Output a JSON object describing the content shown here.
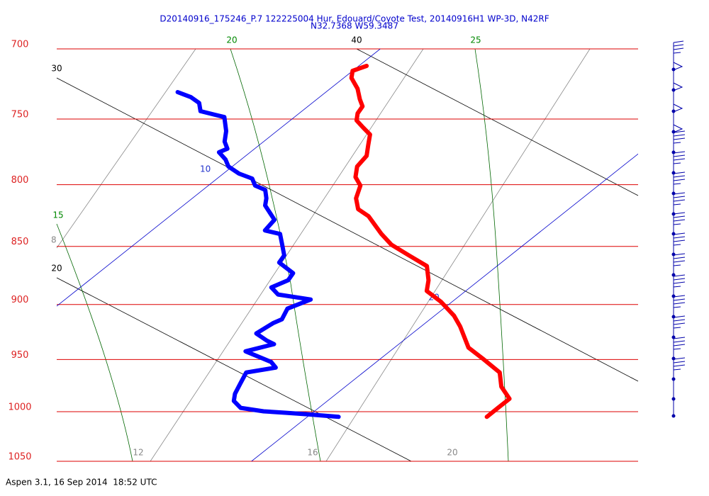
{
  "chart_data": {
    "type": "skewt",
    "title": "D20140916_175246_P.7 122225004 Hur. Edouard/Coyote Test, 20140916H1 WP-3D, N42RF",
    "subtitle": "N32.7368 W59.3487",
    "footer": "Aspen 3.1, 16 Sep 2014  18:52 UTC",
    "log_y": true,
    "ylim": [
      700,
      1050
    ],
    "yticks": [
      700,
      750,
      800,
      850,
      900,
      950,
      1000,
      1050
    ],
    "isotherms": [
      10,
      20
    ],
    "dry_adiabats": [
      30,
      20,
      40
    ],
    "moist_adiabats": [
      20,
      15,
      25
    ],
    "mixing_ratios": [
      8,
      12,
      16,
      20
    ],
    "series": [
      {
        "color": "#ff0000",
        "x": [
          10.2,
          10.0,
          10.2,
          10.7,
          11.1,
          11.4,
          11.5,
          11.7,
          12.1,
          12.5,
          12.8,
          13.1,
          13.2,
          13.5,
          13.9,
          14.2,
          14.6,
          15.1,
          16.0,
          16.6,
          17.4,
          18.2,
          18.7,
          19.0,
          19.7,
          20.5,
          21.0,
          21.9,
          22.6,
          23.5,
          24.0,
          24.6,
          24.6,
          24.6
        ],
        "values": [
          711.8,
          715.3,
          720.3,
          727.9,
          735.5,
          740.7,
          745.8,
          751.0,
          756.3,
          761.5,
          769.6,
          777.6,
          785.8,
          794.0,
          800.7,
          810.8,
          819.4,
          825.2,
          839.7,
          848.6,
          857.6,
          866.6,
          878.8,
          888.1,
          897.4,
          910.0,
          919.6,
          939.0,
          948.9,
          962.2,
          975.7,
          987.4,
          996.3,
          1005.1
        ]
      },
      {
        "color": "#0000ff",
        "x": [
          6.2,
          6.7,
          7.1,
          7.4,
          7.9,
          8.2,
          8.7,
          9.0,
          9.3,
          9.2,
          9.6,
          9.9,
          10.4,
          10.9,
          11.2,
          11.6,
          11.9,
          12.1,
          12.8,
          12.9,
          13.4,
          13.8,
          14.2,
          14.3,
          15.0,
          15.1,
          14.9,
          15.3,
          16.3,
          16.0,
          16.2,
          16.1,
          16.0,
          16.5,
          16.8,
          16.3,
          17.3,
          17.6,
          17.0,
          17.2,
          17.4,
          17.6,
          18.0,
          18.7,
          19.3,
          19.9,
          20.8
        ],
        "values": [
          730.4,
          734.0,
          738.2,
          744.2,
          746.9,
          748.5,
          758.9,
          766.8,
          772.2,
          774.9,
          780.4,
          785.8,
          791.3,
          795.2,
          800.7,
          804.1,
          810.8,
          816.5,
          828.1,
          836.8,
          839.7,
          848.6,
          857.6,
          863.6,
          872.7,
          878.8,
          885.0,
          891.2,
          895.6,
          903.7,
          913.2,
          916.4,
          926.0,
          932.5,
          935.8,
          942.4,
          952.3,
          957.6,
          962.2,
          972.4,
          982.6,
          989.5,
          996.3,
          999.7,
          1001.1,
          1002.5,
          1005.1
        ]
      }
    ]
  }
}
